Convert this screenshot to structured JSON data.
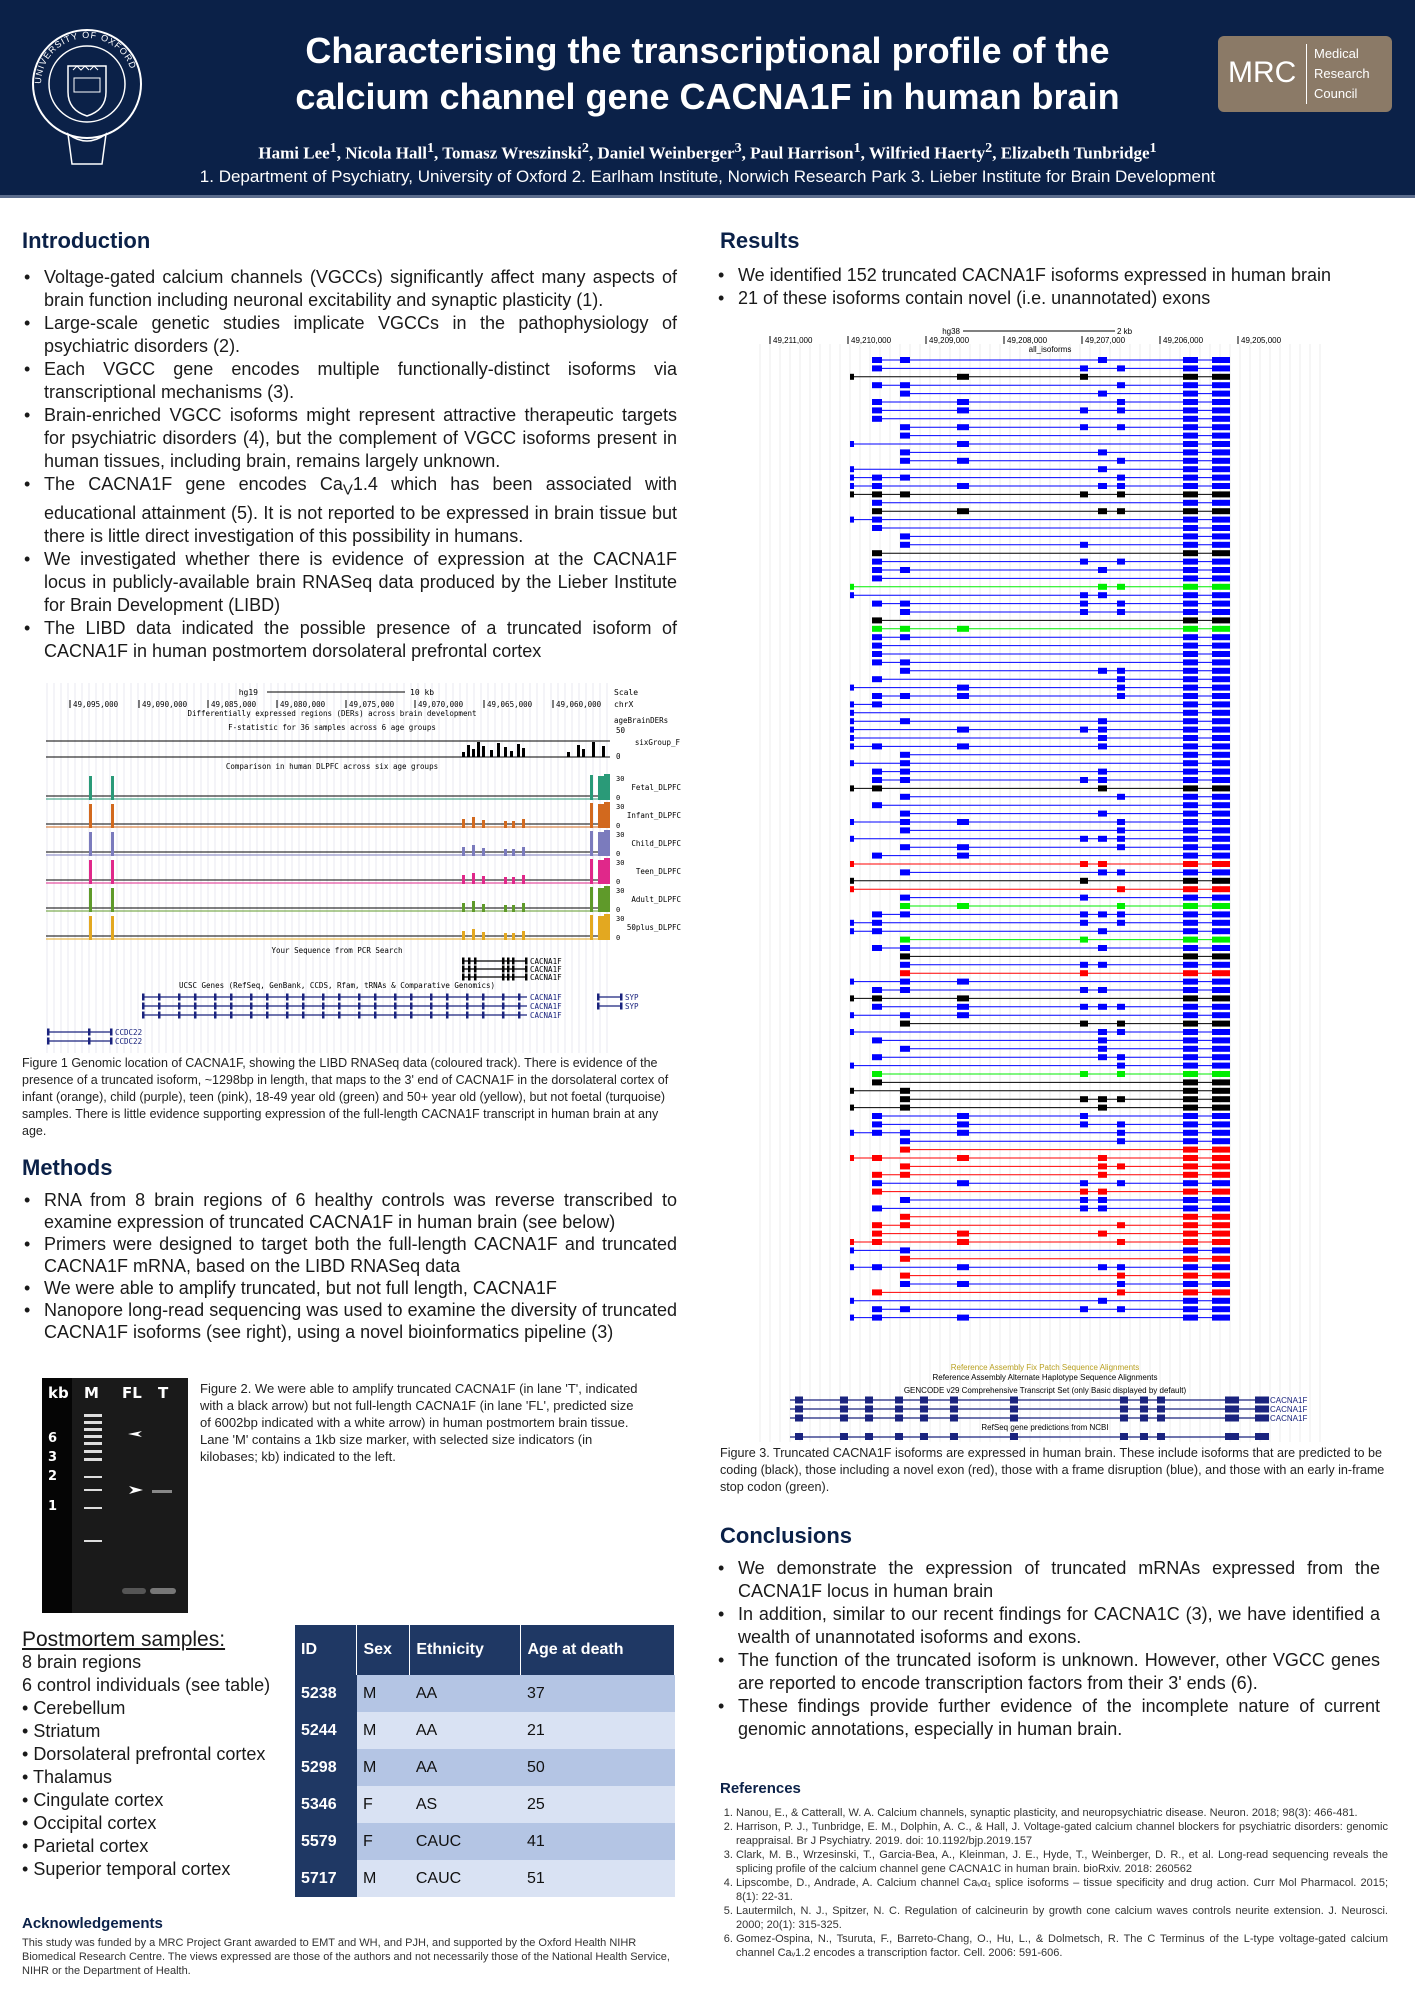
{
  "header": {
    "title_line1": "Characterising the transcriptional profile of the",
    "title_line2": "calcium channel gene CACNA1F in human brain",
    "authors": [
      {
        "name": "Hami Lee",
        "aff": "1"
      },
      {
        "name": "Nicola Hall",
        "aff": "1"
      },
      {
        "name": "Tomasz Wreszinski",
        "aff": "2"
      },
      {
        "name": "Daniel Weinberger",
        "aff": "3"
      },
      {
        "name": "Paul Harrison",
        "aff": "1"
      },
      {
        "name": "Wilfried Haerty",
        "aff": "2"
      },
      {
        "name": "Elizabeth Tunbridge",
        "aff": "1"
      }
    ],
    "affiliations": "1.  Department of Psychiatry, University of Oxford 2. Earlham Institute, Norwich Research Park 3. Lieber Institute for Brain Development",
    "logo_left": "UNIVERSITY OF OXFORD",
    "logo_right": {
      "abbr": "MRC",
      "line1": "Medical",
      "line2": "Research",
      "line3": "Council"
    },
    "color": "#0b2148"
  },
  "introduction": {
    "heading": "Introduction",
    "bullets": [
      "Voltage-gated calcium channels (VGCCs) significantly affect many aspects of brain function including neuronal excitability and synaptic plasticity (1).",
      "Large-scale genetic studies implicate VGCCs in the pathophysiology of psychiatric disorders (2).",
      "Each VGCC gene encodes multiple functionally-distinct isoforms via transcriptional mechanisms (3).",
      "Brain-enriched VGCC isoforms might represent attractive therapeutic targets for psychiatric disorders (4), but the complement of VGCC isoforms present in human tissues, including brain, remains largely unknown."
    ],
    "cav_bullet": {
      "pre": "The CACNA1F gene encodes Ca",
      "sub": "V",
      "post": "1.4 which has been associated with educational attainment (5). It is not reported to be expressed in brain tissue but there is little direct investigation of this possibility in humans."
    },
    "bullets2": [
      "We investigated whether there is evidence of expression at the CACNA1F locus in publicly-available brain RNASeq data produced by the Lieber Institute for Brain Development (LIBD)",
      "The LIBD data indicated the possible presence of a truncated isoform of CACNA1F in human postmortem dorsolateral prefrontal cortex"
    ]
  },
  "figure1": {
    "assembly": "hg19",
    "scale": "10 kb",
    "scale_label": "Scale",
    "chrom": "chrX",
    "positions": [
      "49,095,000",
      "49,090,000",
      "49,085,000",
      "49,080,000",
      "49,075,000",
      "49,070,000",
      "49,065,000",
      "49,060,000"
    ],
    "der_title": "Differentially expressed regions (DERs) across brain development",
    "der_sub": "F-statistic for 36 samples across 6 age groups",
    "der_track": "ageBrainDERs",
    "der_max": "50",
    "der_name": "sixGroup_F",
    "der_min": "0",
    "comparison": "Comparison in human DLPFC across six age groups",
    "tracks": [
      {
        "name": "Fetal_DLPFC",
        "color": "#2a9a78"
      },
      {
        "name": "Infant_DLPFC",
        "color": "#d2691e"
      },
      {
        "name": "Child_DLPFC",
        "color": "#7b7bbd"
      },
      {
        "name": "Teen_DLPFC",
        "color": "#e0288a"
      },
      {
        "name": "Adult_DLPFC",
        "color": "#5f9a2a"
      },
      {
        "name": "50plus_DLPFC",
        "color": "#e3a820"
      }
    ],
    "track_max": "30",
    "track_min": "0",
    "pcr": "Your Sequence from PCR Search",
    "gene": "CACNA1F",
    "ucsc": "UCSC Genes (RefSeq, GenBank, CCDS, Rfam, tRNAs & Comparative Genomics)",
    "syp": "SYP",
    "ccdc": "CCDC22",
    "caption": "Figure 1 Genomic location of CACNA1F, showing the LIBD RNASeq data (coloured track). There is evidence of the presence of a truncated isoform, ~1298bp in length, that maps to the 3' end of CACNA1F in the dorsolateral cortex of  infant (orange), child (purple), teen (pink), 18-49 year old (green) and 50+ year old (yellow), but not foetal (turquoise) samples. There is little evidence supporting expression  of the full-length CACNA1F transcript in human brain at any age."
  },
  "methods": {
    "heading": "Methods",
    "bullets": [
      "RNA from 8 brain regions of 6 healthy controls was reverse transcribed to examine expression of truncated CACNA1F in human brain (see below)",
      "Primers were designed to target both the full-length CACNA1F and truncated CACNA1F mRNA, based on the LIBD RNASeq data",
      "We were able to amplify truncated, but not full length, CACNA1F",
      "Nanopore long-read sequencing was used to examine the diversity of truncated CACNA1F isoforms (see right), using a novel bioinformatics pipeline (3)"
    ]
  },
  "figure2": {
    "unit": "kb",
    "lanes": [
      "M",
      "FL",
      "T"
    ],
    "sizes": [
      "6",
      "3",
      "2",
      "1"
    ],
    "caption": "Figure 2. We were able to amplify truncated CACNA1F (in lane 'T', indicated with a black arrow) but not full-length CACNA1F (in lane 'FL', predicted size of 6002bp indicated with a white arrow) in human postmortem brain tissue. Lane 'M' contains a 1kb size marker, with selected size indicators (in kilobases; kb) indicated to the left."
  },
  "samples": {
    "heading": "Postmortem samples:",
    "line1": "8 brain regions",
    "line2": "6 control individuals (see table)",
    "regions": [
      "Cerebellum",
      "Striatum",
      "Dorsolateral prefrontal cortex",
      "Thalamus",
      "Cingulate cortex",
      "Occipital cortex",
      "Parietal cortex",
      "Superior temporal cortex"
    ],
    "table": {
      "headers": [
        "ID",
        "Sex",
        "Ethnicity",
        "Age at death"
      ],
      "rows": [
        [
          "5238",
          "M",
          "AA",
          "37"
        ],
        [
          "5244",
          "M",
          "AA",
          "21"
        ],
        [
          "5298",
          "M",
          "AA",
          "50"
        ],
        [
          "5346",
          "F",
          "AS",
          "25"
        ],
        [
          "5579",
          "F",
          "CAUC",
          "41"
        ],
        [
          "5717",
          "M",
          "CAUC",
          "51"
        ]
      ]
    }
  },
  "acknowledgements": {
    "heading": "Acknowledgements",
    "text": "This study was funded by a MRC Project Grant awarded to EMT and WH, and PJH, and supported by the Oxford Health NIHR Biomedical Research Centre. The views expressed are those of the authors and not necessarily those of the National Health Service, NIHR or the Department of Health."
  },
  "results": {
    "heading": "Results",
    "bullets": [
      "We identified 152 truncated CACNA1F isoforms expressed in human brain",
      "21 of these isoforms contain novel (i.e. unannotated) exons"
    ]
  },
  "figure3": {
    "assembly": "hg38",
    "scale": "2 kb",
    "positions": [
      "49,211,000",
      "49,210,000",
      "49,209,000",
      "49,208,000",
      "49,207,000",
      "49,206,000",
      "49,205,000"
    ],
    "track": "all_isoforms",
    "categories": [
      {
        "label": "coding",
        "color": "#000000"
      },
      {
        "label": "novel exon",
        "color": "#ff0000"
      },
      {
        "label": "frame disruption",
        "color": "#0000ff"
      },
      {
        "label": "early in-frame stop codon",
        "color": "#00ee00"
      }
    ],
    "fix_patch": "Reference Assembly Fix Patch Sequence Alignments",
    "alt_hap": "Reference Assembly Alternate Haplotype Sequence Alignments",
    "gencode": "GENCODE v29 Comprehensive Transcript Set (only Basic displayed by default)",
    "gene": "CACNA1F",
    "refseq": "RefSeq gene predictions from NCBI",
    "caption": "Figure 3. Truncated CACNA1F isoforms are expressed in human brain. These include isoforms that are predicted to be coding (black), those including a novel exon (red), those with a frame disruption (blue), and those with an early in-frame stop codon (green)."
  },
  "conclusions": {
    "heading": "Conclusions",
    "bullets": [
      "We demonstrate the expression of truncated mRNAs expressed from the CACNA1F locus in human brain",
      "In addition, similar to our recent findings for CACNA1C (3), we have identified a wealth of unannotated isoforms and exons.",
      "The function of the truncated isoform is unknown. However, other VGCC genes are reported to encode transcription factors from their 3' ends (6).",
      "These findings provide further evidence of the incomplete nature of current genomic annotations, especially in human brain."
    ]
  },
  "references": {
    "heading": "References",
    "items": [
      "Nanou, E., & Catterall, W. A. Calcium channels, synaptic plasticity, and neuropsychiatric disease. Neuron. 2018; 98(3): 466-481.",
      "Harrison, P. J., Tunbridge, E. M., Dolphin, A. C., & Hall, J. Voltage-gated calcium channel blockers for psychiatric disorders: genomic reappraisal. Br J Psychiatry. 2019. doi: 10.1192/bjp.2019.157",
      "Clark, M. B., Wrzesinski, T., Garcia-Bea, A., Kleinman, J. E., Hyde, T., Weinberger, D. R., et al. Long-read sequencing reveals the splicing profile of the calcium channel gene CACNA1C in human brain.   bioRxiv. 2018: 260562",
      "Lipscombe, D., Andrade, A. Calcium channel Caᵥα₁ splice isoforms – tissue specificity and drug action. Curr Mol Pharmacol. 2015; 8(1): 22-31.",
      "Lautermilch, N. J., Spitzer, N. C. Regulation of calcineurin by growth cone calcium waves controls neurite extension. J. Neurosci. 2000; 20(1): 315-325.",
      "Gomez-Ospina, N., Tsuruta, F., Barreto-Chang, O., Hu, L., & Dolmetsch, R. The C Terminus of the L-type voltage-gated calcium channel Caᵥ1.2 encodes a transcription factor. Cell. 2006: 591-606."
    ]
  }
}
